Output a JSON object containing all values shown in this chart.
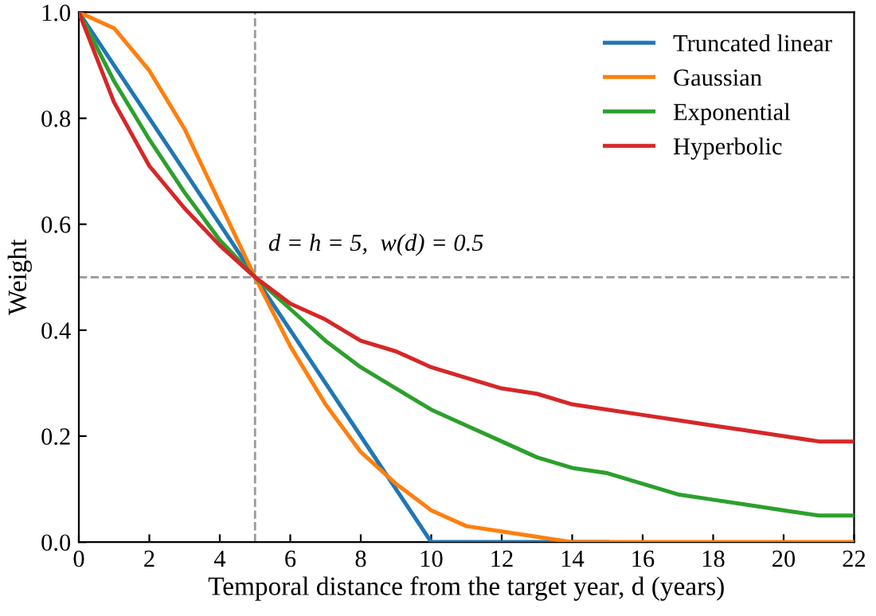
{
  "chart_data": {
    "type": "line",
    "xlabel": "Temporal distance from the target year, d (years)",
    "ylabel": "Weight",
    "x": [
      0,
      1,
      2,
      3,
      4,
      5,
      6,
      7,
      8,
      9,
      10,
      11,
      12,
      13,
      14,
      15,
      16,
      17,
      18,
      19,
      20,
      21,
      22
    ],
    "series": [
      {
        "name": "Truncated linear",
        "color": "#1f77b4",
        "values": [
          1,
          0.9,
          0.8,
          0.7,
          0.6,
          0.5,
          0.4,
          0.3,
          0.2,
          0.1,
          0,
          0,
          0,
          0,
          0,
          0,
          null,
          null,
          null,
          null,
          null,
          null,
          null
        ]
      },
      {
        "name": "Gaussian",
        "color": "#ff7f0e",
        "values": [
          1,
          0.97,
          0.89,
          0.78,
          0.64,
          0.5,
          0.37,
          0.26,
          0.17,
          0.11,
          0.06,
          0.03,
          0.02,
          0.01,
          0,
          0,
          0,
          0,
          0,
          0,
          0,
          0,
          0
        ]
      },
      {
        "name": "Exponential",
        "color": "#2ca02c",
        "values": [
          1,
          0.87,
          0.76,
          0.66,
          0.57,
          0.5,
          0.44,
          0.38,
          0.33,
          0.29,
          0.25,
          0.22,
          0.19,
          0.16,
          0.14,
          0.13,
          0.11,
          0.09,
          0.08,
          0.07,
          0.06,
          0.05,
          0.05
        ]
      },
      {
        "name": "Hyperbolic",
        "color": "#d62728",
        "values": [
          1,
          0.83,
          0.71,
          0.63,
          0.56,
          0.5,
          0.45,
          0.42,
          0.38,
          0.36,
          0.33,
          0.31,
          0.29,
          0.28,
          0.26,
          0.25,
          0.24,
          0.23,
          0.22,
          0.21,
          0.2,
          0.19,
          0.19
        ]
      }
    ],
    "xlim": [
      0,
      22
    ],
    "xticks": [
      0,
      2,
      4,
      6,
      8,
      10,
      12,
      14,
      16,
      18,
      20,
      22
    ],
    "ylim": [
      0,
      1.0
    ],
    "yticks": [
      {
        "value": 0,
        "label": "0.0"
      },
      0.2,
      0.4,
      0.6,
      0.8,
      {
        "value": 1,
        "label": "1.0"
      }
    ],
    "ref_lines": [
      {
        "axis": "x",
        "value": 5,
        "color": "#999999",
        "line_style": "dashed"
      },
      {
        "axis": "y",
        "value": 0.5,
        "color": "#999999",
        "line_style": "dashed"
      }
    ],
    "annotations": [
      {
        "text": "d = h = 5,  w(d) = 0.5",
        "x": 5,
        "y": 0.5
      }
    ],
    "legend": "top right",
    "grid": false,
    "marker": "none",
    "line_style": "solid"
  }
}
